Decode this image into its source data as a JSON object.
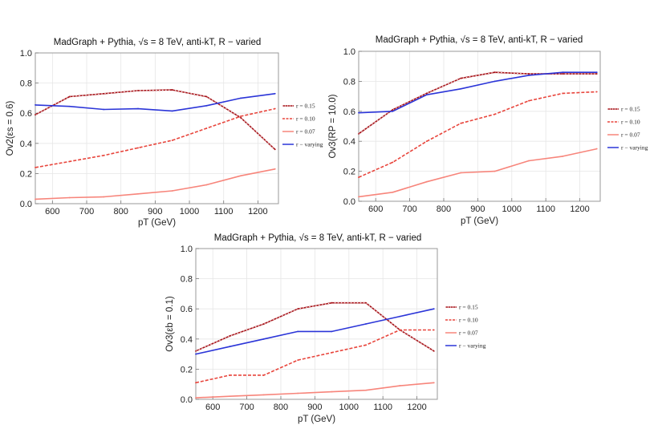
{
  "colors": {
    "r015": "#a50f15",
    "r010": "#e8453c",
    "r007": "#f7857b",
    "rvar": "#2b35d8",
    "frame": "#9a9a9a",
    "grid": "#e6e6e6"
  },
  "chart_data": [
    {
      "type": "line",
      "title": "MadGraph + Pythia, √s = 8 TeV, anti-kT, R − varied",
      "xlabel": "pT (GeV)",
      "ylabel": "Ov2(εs = 0.6)",
      "xlim": [
        550,
        1260
      ],
      "ylim": [
        0,
        1.0
      ],
      "xticks": [
        "600",
        "700",
        "800",
        "900",
        "1000",
        "1100",
        "1200"
      ],
      "yticks": [
        "0.0",
        "0.2",
        "0.4",
        "0.6",
        "0.8",
        "1.0"
      ],
      "x": [
        550,
        650,
        750,
        850,
        950,
        1050,
        1150,
        1250
      ],
      "series": [
        {
          "name": "r = 0.15",
          "values": [
            0.59,
            0.71,
            0.73,
            0.75,
            0.755,
            0.71,
            0.57,
            0.36
          ]
        },
        {
          "name": "r = 0.10",
          "values": [
            0.24,
            0.28,
            0.32,
            0.37,
            0.42,
            0.5,
            0.58,
            0.63
          ]
        },
        {
          "name": "r = 0.07",
          "values": [
            0.03,
            0.04,
            0.045,
            0.065,
            0.085,
            0.125,
            0.185,
            0.23
          ]
        },
        {
          "name": "r − varying",
          "values": [
            0.655,
            0.645,
            0.625,
            0.63,
            0.615,
            0.65,
            0.7,
            0.73
          ]
        }
      ]
    },
    {
      "type": "line",
      "title": "MadGraph + Pythia, √s = 8 TeV, anti-kT, R − varied",
      "xlabel": "pT (GeV)",
      "ylabel": "Ov3(RP = 10.0)",
      "xlim": [
        550,
        1260
      ],
      "ylim": [
        0,
        1.0
      ],
      "xticks": [
        "600",
        "700",
        "800",
        "900",
        "1000",
        "1100",
        "1200"
      ],
      "yticks": [
        "0.0",
        "0.2",
        "0.4",
        "0.6",
        "0.8",
        "1.0"
      ],
      "x": [
        550,
        650,
        750,
        850,
        950,
        1050,
        1150,
        1250
      ],
      "series": [
        {
          "name": "r = 0.15",
          "values": [
            0.45,
            0.61,
            0.72,
            0.82,
            0.86,
            0.85,
            0.85,
            0.85
          ]
        },
        {
          "name": "r = 0.10",
          "values": [
            0.16,
            0.26,
            0.4,
            0.52,
            0.58,
            0.67,
            0.72,
            0.73
          ]
        },
        {
          "name": "r = 0.07",
          "values": [
            0.03,
            0.06,
            0.13,
            0.19,
            0.2,
            0.27,
            0.3,
            0.35
          ]
        },
        {
          "name": "r − varying",
          "values": [
            0.59,
            0.6,
            0.71,
            0.75,
            0.8,
            0.84,
            0.86,
            0.86
          ]
        }
      ]
    },
    {
      "type": "line",
      "title": "MadGraph + Pythia, √s = 8 TeV, anti-kT, R − varied",
      "xlabel": "pT (GeV)",
      "ylabel": "Ov3(εb = 0.1)",
      "xlim": [
        550,
        1260
      ],
      "ylim": [
        0,
        1.0
      ],
      "xticks": [
        "600",
        "700",
        "800",
        "900",
        "1000",
        "1100",
        "1200"
      ],
      "yticks": [
        "0.0",
        "0.2",
        "0.4",
        "0.6",
        "0.8",
        "1.0"
      ],
      "x": [
        550,
        650,
        750,
        850,
        950,
        1050,
        1150,
        1250
      ],
      "series": [
        {
          "name": "r = 0.15",
          "values": [
            0.32,
            0.42,
            0.5,
            0.6,
            0.64,
            0.64,
            0.46,
            0.32
          ]
        },
        {
          "name": "r = 0.10",
          "values": [
            0.11,
            0.16,
            0.16,
            0.26,
            0.31,
            0.36,
            0.46,
            0.46
          ]
        },
        {
          "name": "r = 0.07",
          "values": [
            0.01,
            0.02,
            0.03,
            0.04,
            0.05,
            0.06,
            0.09,
            0.11
          ]
        },
        {
          "name": "r − varying",
          "values": [
            0.3,
            0.35,
            0.4,
            0.45,
            0.45,
            0.5,
            0.55,
            0.6
          ]
        }
      ]
    }
  ]
}
